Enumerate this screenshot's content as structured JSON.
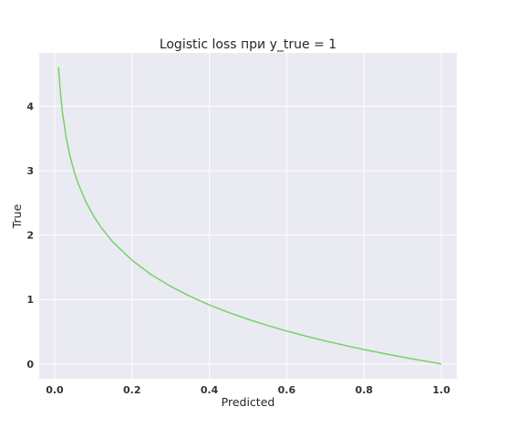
{
  "chart_data": {
    "type": "line",
    "title": "Logistic loss при y_true = 1",
    "xlabel": "Predicted",
    "ylabel": "True",
    "xlim": [
      -0.04,
      1.04
    ],
    "ylim": [
      -0.23,
      4.83
    ],
    "xticks": [
      0.0,
      0.2,
      0.4,
      0.6,
      0.8,
      1.0
    ],
    "xtick_labels": [
      "0.0",
      "0.2",
      "0.4",
      "0.6",
      "0.8",
      "1.0"
    ],
    "yticks": [
      0,
      1,
      2,
      3,
      4
    ],
    "ytick_labels": [
      "0",
      "1",
      "2",
      "3",
      "4"
    ],
    "grid": true,
    "background": "#eaeaf2",
    "grid_color": "#ffffff",
    "line_color": "#77d26b",
    "series": [
      {
        "x": [
          0.01,
          0.015,
          0.02,
          0.03,
          0.04,
          0.05,
          0.06,
          0.08,
          0.1,
          0.12,
          0.15,
          0.2,
          0.25,
          0.3,
          0.35,
          0.4,
          0.45,
          0.5,
          0.55,
          0.6,
          0.65,
          0.7,
          0.75,
          0.8,
          0.85,
          0.9,
          0.95,
          1.0
        ],
        "y": [
          4.605,
          4.2,
          3.912,
          3.507,
          3.219,
          2.996,
          2.813,
          2.526,
          2.303,
          2.12,
          1.897,
          1.609,
          1.386,
          1.204,
          1.05,
          0.916,
          0.799,
          0.693,
          0.598,
          0.511,
          0.431,
          0.357,
          0.288,
          0.223,
          0.163,
          0.105,
          0.051,
          0.0
        ]
      }
    ]
  }
}
